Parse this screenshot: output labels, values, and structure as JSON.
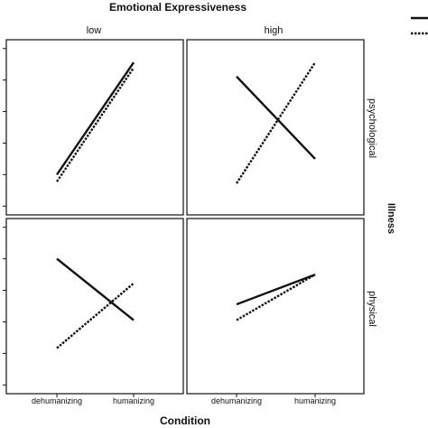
{
  "chart_data": {
    "type": "line",
    "title": "Emotional Expressiveness",
    "xlabel": "Condition",
    "right_strip_label": "Illness",
    "columns": [
      "low",
      "high"
    ],
    "rows": [
      "psychological",
      "physical"
    ],
    "categories": [
      "dehumanizing",
      "humanizing"
    ],
    "ylim": [
      0,
      1
    ],
    "grid": false,
    "legend": {
      "placement": "top-right",
      "labels": [
        "",
        ""
      ],
      "styles": [
        "solid",
        "dotted"
      ]
    },
    "series_styles": [
      "solid",
      "dotted"
    ],
    "panels": [
      {
        "row": "psychological",
        "col": "low",
        "series": [
          {
            "values": [
              0.23,
              0.87
            ]
          },
          {
            "values": [
              0.19,
              0.84
            ]
          }
        ]
      },
      {
        "row": "psychological",
        "col": "high",
        "series": [
          {
            "values": [
              0.79,
              0.32
            ]
          },
          {
            "values": [
              0.18,
              0.87
            ]
          }
        ]
      },
      {
        "row": "physical",
        "col": "low",
        "series": [
          {
            "values": [
              0.77,
              0.42
            ]
          },
          {
            "values": [
              0.26,
              0.63
            ]
          }
        ]
      },
      {
        "row": "physical",
        "col": "high",
        "series": [
          {
            "values": [
              0.51,
              0.68
            ]
          },
          {
            "values": [
              0.42,
              0.68
            ]
          }
        ]
      }
    ]
  }
}
